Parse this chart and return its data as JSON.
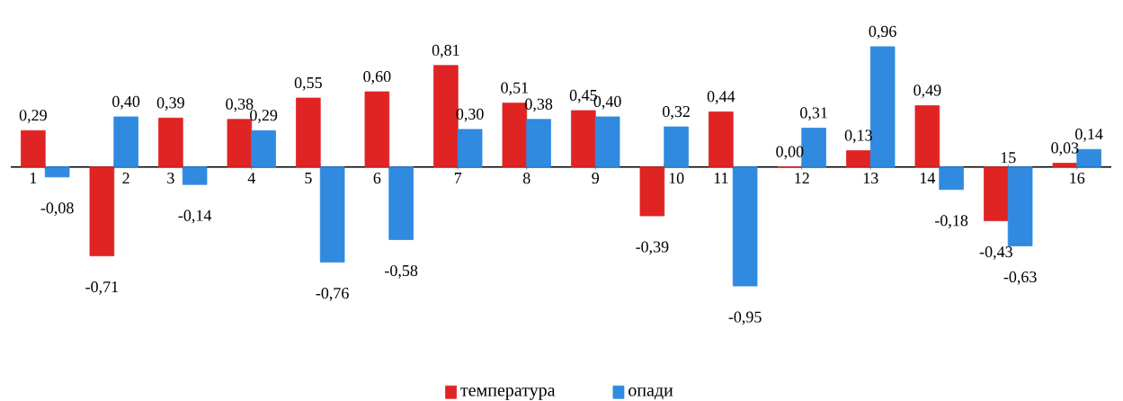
{
  "chart_data": {
    "type": "bar",
    "categories": [
      "1",
      "2",
      "3",
      "4",
      "5",
      "6",
      "7",
      "8",
      "9",
      "10",
      "11",
      "12",
      "13",
      "14",
      "15",
      "16"
    ],
    "series": [
      {
        "name": "температура",
        "color": "#e02424",
        "values": [
          0.29,
          -0.71,
          0.39,
          0.38,
          0.55,
          0.6,
          0.81,
          0.51,
          0.45,
          -0.39,
          0.44,
          0.0,
          0.13,
          0.49,
          -0.43,
          0.03
        ],
        "value_labels": [
          "0,29",
          "-0,71",
          "0,39",
          "0,38",
          "0,55",
          "0,60",
          "0,81",
          "0,51",
          "0,45",
          "-0,39",
          "0,44",
          "0,00",
          "0,13",
          "0,49",
          "-0,43",
          "0,03"
        ]
      },
      {
        "name": "опади",
        "color": "#2f8ae0",
        "values": [
          -0.08,
          0.4,
          -0.14,
          0.29,
          -0.76,
          -0.58,
          0.3,
          0.38,
          0.4,
          0.32,
          -0.95,
          0.31,
          0.96,
          -0.18,
          -0.63,
          0.14
        ],
        "value_labels": [
          "-0,08",
          "0,40",
          "-0,14",
          "0,29",
          "-0,76",
          "-0,58",
          "0,30",
          "0,38",
          "0,40",
          "0,32",
          "-0,95",
          "0,31",
          "0,96",
          "-0,18",
          "-0,63",
          "0,14"
        ]
      }
    ],
    "tick_labels": "x",
    "legend": "bottom"
  }
}
